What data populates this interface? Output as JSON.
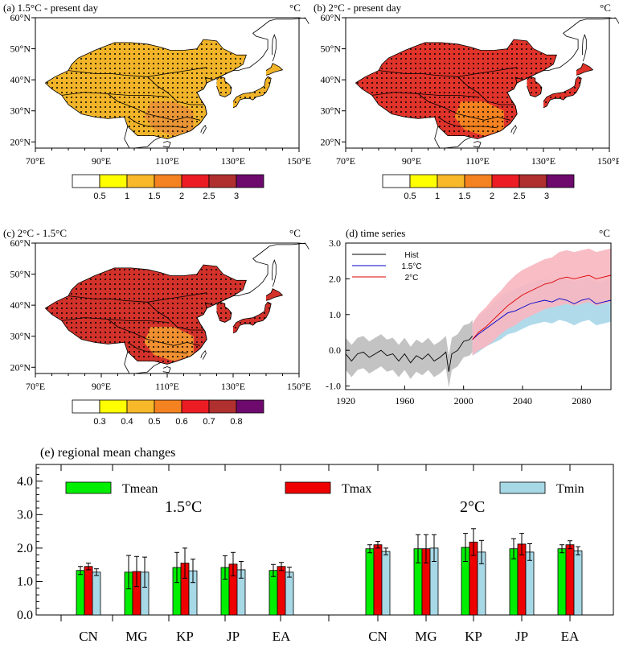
{
  "maps": [
    {
      "id": "a",
      "title": "(a) 1.5°C - present day",
      "unit": "°C",
      "cbar_labels": [
        "0.5",
        "1",
        "1.5",
        "2",
        "2.5",
        "3"
      ],
      "cbar_colors": [
        "#ffffff",
        "#ffff00",
        "#f7b829",
        "#f58220",
        "#ec1c24",
        "#b03030",
        "#6e0a6e"
      ],
      "fill": "#f1b429",
      "fill2": "#e99535"
    },
    {
      "id": "b",
      "title": "(b) 2°C - present day",
      "unit": "°C",
      "cbar_labels": [
        "0.5",
        "1",
        "1.5",
        "2",
        "2.5",
        "3"
      ],
      "cbar_colors": [
        "#ffffff",
        "#ffff00",
        "#f7b829",
        "#f58220",
        "#ec1c24",
        "#b03030",
        "#6e0a6e"
      ],
      "fill": "#e0332a",
      "fill2": "#f58220"
    },
    {
      "id": "c",
      "title": "(c) 2°C - 1.5°C",
      "unit": "°C",
      "cbar_labels": [
        "0.3",
        "0.4",
        "0.5",
        "0.6",
        "0.7",
        "0.8"
      ],
      "cbar_colors": [
        "#ffffff",
        "#ffff00",
        "#f7b829",
        "#f58220",
        "#ec1c24",
        "#b03030",
        "#6e0a6e"
      ],
      "fill": "#d2322a",
      "fill2": "#f09030"
    }
  ],
  "map_axes": {
    "lon_ticks": [
      "70°E",
      "90°E",
      "110°E",
      "130°E",
      "150°E"
    ],
    "lat_ticks": [
      "60°N",
      "50°N",
      "40°N",
      "30°N",
      "20°N"
    ]
  },
  "chart_data": [
    {
      "type": "line",
      "title": "(d) time series",
      "unit": "°C",
      "xlim": [
        1920,
        2100
      ],
      "ylim": [
        -1.1,
        3.0
      ],
      "x_ticks": [
        1920,
        1960,
        2000,
        2040,
        2080
      ],
      "y_ticks": [
        "-1.0",
        "0.0",
        "1.0",
        "2.0",
        "3.0"
      ],
      "legend_position": "top-left",
      "series": [
        {
          "name": "Hist",
          "color": "#000000",
          "band_color": "#bdbdbd",
          "x": [
            1920,
            1924,
            1928,
            1932,
            1936,
            1940,
            1944,
            1948,
            1952,
            1956,
            1960,
            1964,
            1968,
            1972,
            1976,
            1980,
            1984,
            1988,
            1990,
            1992,
            1996,
            2000,
            2004,
            2006
          ],
          "y": [
            -0.1,
            -0.3,
            -0.1,
            -0.05,
            -0.2,
            -0.1,
            0.0,
            -0.15,
            -0.1,
            -0.3,
            -0.1,
            -0.35,
            -0.15,
            -0.25,
            -0.1,
            -0.3,
            -0.2,
            -0.05,
            -0.6,
            -0.1,
            0.0,
            0.25,
            0.3,
            0.4
          ],
          "band": [
            0.45,
            0.45,
            0.45,
            0.45,
            0.45,
            0.45,
            0.45,
            0.45,
            0.45,
            0.45,
            0.45,
            0.45,
            0.45,
            0.45,
            0.45,
            0.45,
            0.45,
            0.45,
            0.45,
            0.45,
            0.45,
            0.45,
            0.45,
            0.45
          ]
        },
        {
          "name": "1.5°C",
          "color": "#0000cc",
          "band_color": "#a7d6e8",
          "x": [
            2006,
            2010,
            2015,
            2020,
            2025,
            2030,
            2035,
            2040,
            2045,
            2050,
            2055,
            2060,
            2065,
            2070,
            2075,
            2080,
            2085,
            2090,
            2095,
            2100
          ],
          "y": [
            0.3,
            0.45,
            0.6,
            0.75,
            0.9,
            1.05,
            1.1,
            1.2,
            1.3,
            1.35,
            1.4,
            1.35,
            1.45,
            1.4,
            1.3,
            1.4,
            1.45,
            1.3,
            1.35,
            1.4
          ],
          "band": [
            0.45,
            0.5,
            0.5,
            0.55,
            0.6,
            0.6,
            0.6,
            0.6,
            0.6,
            0.6,
            0.6,
            0.6,
            0.6,
            0.6,
            0.6,
            0.6,
            0.6,
            0.6,
            0.6,
            0.6
          ]
        },
        {
          "name": "2°C",
          "color": "#dd0000",
          "band_color": "#f8b6c0",
          "x": [
            2006,
            2010,
            2015,
            2020,
            2025,
            2030,
            2035,
            2040,
            2045,
            2050,
            2055,
            2060,
            2065,
            2070,
            2075,
            2080,
            2085,
            2090,
            2095,
            2100
          ],
          "y": [
            0.3,
            0.5,
            0.65,
            0.85,
            1.05,
            1.25,
            1.4,
            1.55,
            1.65,
            1.75,
            1.85,
            1.9,
            2.0,
            2.05,
            2.0,
            2.05,
            2.1,
            2.0,
            2.05,
            2.1
          ],
          "band": [
            0.45,
            0.5,
            0.55,
            0.6,
            0.6,
            0.65,
            0.7,
            0.7,
            0.7,
            0.7,
            0.7,
            0.7,
            0.75,
            0.75,
            0.75,
            0.75,
            0.75,
            0.75,
            0.75,
            0.75
          ]
        }
      ]
    },
    {
      "type": "bar",
      "title": "(e) regional mean changes",
      "ylim": [
        0,
        4.5
      ],
      "y_ticks": [
        "0.0",
        "1.0",
        "2.0",
        "3.0",
        "4.0"
      ],
      "group_labels": [
        "1.5°C",
        "2°C"
      ],
      "categories": [
        "CN",
        "MG",
        "KP",
        "JP",
        "EA"
      ],
      "series": [
        {
          "name": "Tmean",
          "color": "#00ee00",
          "values_1_5": [
            1.33,
            1.28,
            1.42,
            1.42,
            1.33
          ],
          "err_1_5": [
            0.12,
            0.5,
            0.45,
            0.35,
            0.18
          ],
          "values_2": [
            1.98,
            1.98,
            2.02,
            1.98,
            1.98
          ],
          "err_2": [
            0.12,
            0.42,
            0.42,
            0.3,
            0.12
          ]
        },
        {
          "name": "Tmax",
          "color": "#ee0000",
          "values_1_5": [
            1.45,
            1.3,
            1.55,
            1.52,
            1.45
          ],
          "err_1_5": [
            0.1,
            0.45,
            0.45,
            0.35,
            0.12
          ],
          "values_2": [
            2.1,
            1.98,
            2.18,
            2.12,
            2.1
          ],
          "err_2": [
            0.1,
            0.42,
            0.4,
            0.32,
            0.12
          ]
        },
        {
          "name": "Tmin",
          "color": "#a7d8e6",
          "values_1_5": [
            1.28,
            1.28,
            1.32,
            1.35,
            1.28
          ],
          "err_1_5": [
            0.1,
            0.45,
            0.35,
            0.25,
            0.15
          ],
          "values_2": [
            1.9,
            2.0,
            1.88,
            1.88,
            1.92
          ],
          "err_2": [
            0.1,
            0.4,
            0.35,
            0.25,
            0.12
          ]
        }
      ]
    }
  ]
}
